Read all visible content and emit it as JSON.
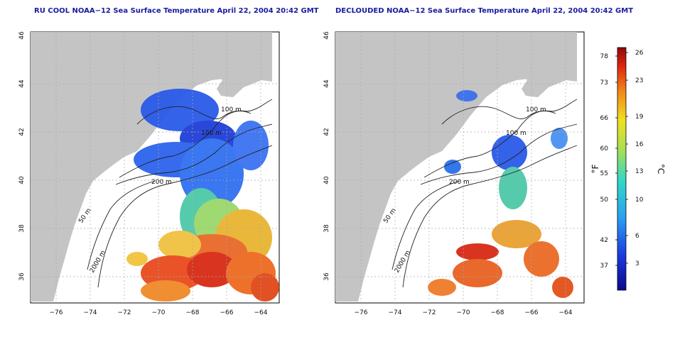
{
  "panels": [
    {
      "title": "RU COOL NOAA−12 Sea Surface Temperature April 22, 2004 20:42 GMT",
      "contour_labels": [
        "100 m",
        "100 m",
        "200 m",
        "50 m",
        "2000 m"
      ]
    },
    {
      "title": "DECLOUDED NOAA−12 Sea Surface Temperature April 22, 2004 20:42 GMT",
      "contour_labels": [
        "100 m",
        "100 m",
        "200 m",
        "50 m",
        "2000 m"
      ]
    }
  ],
  "axes": {
    "x_ticks": [
      "−76",
      "−74",
      "−72",
      "−70",
      "−68",
      "−66",
      "−64"
    ],
    "y_ticks": [
      "36",
      "38",
      "40",
      "42",
      "44",
      "46"
    ]
  },
  "colorbar": {
    "unit_f": "°F",
    "unit_c": "°C",
    "f_ticks": [
      "78",
      "73",
      "66",
      "60",
      "55",
      "50",
      "42",
      "37"
    ],
    "c_ticks": [
      "26",
      "23",
      "19",
      "16",
      "13",
      "10",
      "6",
      "3"
    ]
  },
  "colors": {
    "land": "#c4c4c4",
    "ocean": "#ffffff",
    "grid": "#aaaaaa",
    "title": "#1a1aa0"
  }
}
